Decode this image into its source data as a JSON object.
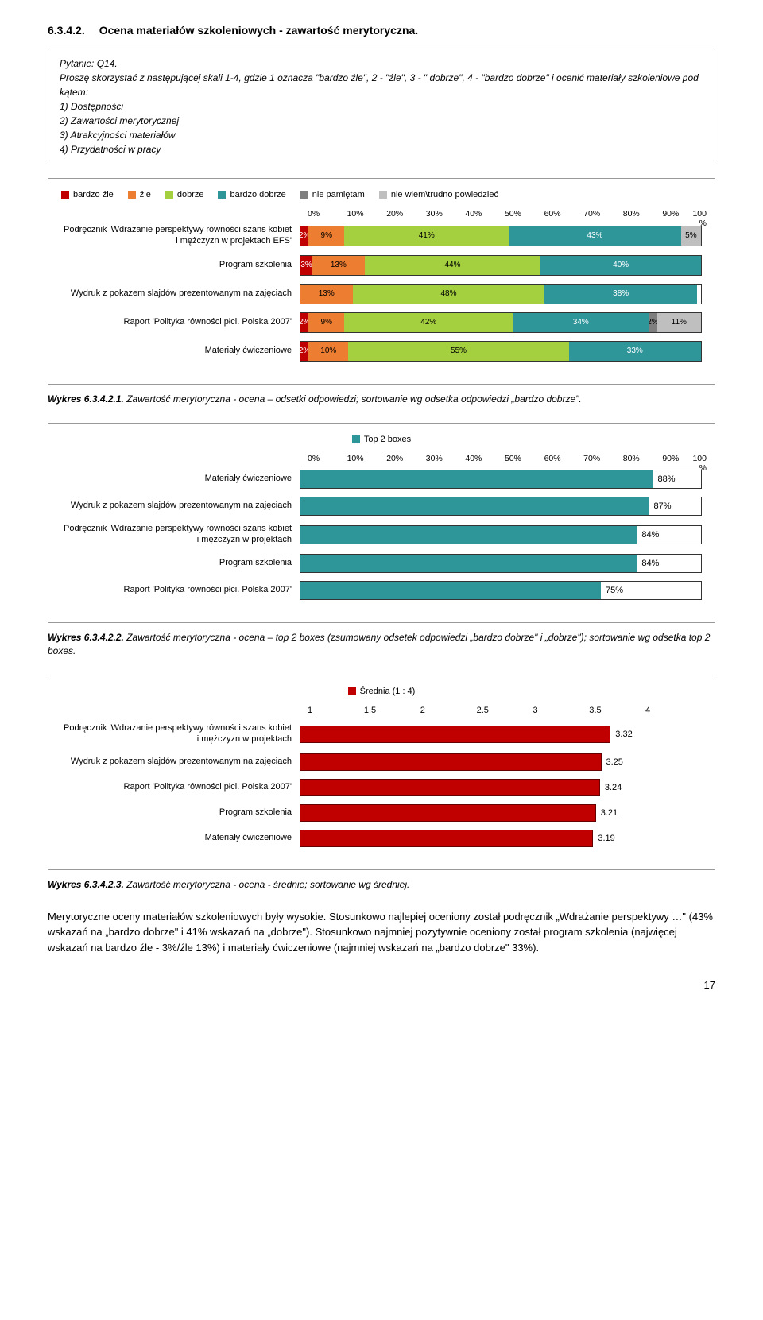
{
  "heading": {
    "num": "6.3.4.2.",
    "title": "Ocena materiałów szkoleniowych - zawartość merytoryczna."
  },
  "question": {
    "title": "Pytanie: Q14.",
    "lead": "Proszę skorzystać z następującej skali 1-4, gdzie 1 oznacza \"bardzo źle\", 2 - \"źle\", 3 - \" dobrze\", 4 - \"bardzo dobrze\" i ocenić materiały szkoleniowe pod kątem:",
    "items": [
      "1) Dostępności",
      "2) Zawartości merytorycznej",
      "3) Atrakcyjności materiałów",
      "4) Przydatności w pracy"
    ]
  },
  "chart1": {
    "legend": [
      {
        "label": "bardzo źle",
        "color": "#c00000"
      },
      {
        "label": "źle",
        "color": "#ed7d31"
      },
      {
        "label": "dobrze",
        "color": "#a4cf3f"
      },
      {
        "label": "bardzo dobrze",
        "color": "#2e9599"
      },
      {
        "label": "nie pamiętam",
        "color": "#7f7f7f"
      },
      {
        "label": "nie wiem\\trudno powiedzieć",
        "color": "#bfbfbf"
      }
    ],
    "xticks": [
      "0%",
      "10%",
      "20%",
      "30%",
      "40%",
      "50%",
      "60%",
      "70%",
      "80%",
      "90%",
      "100%"
    ],
    "rows": [
      {
        "label": "Podręcznik 'Wdrażanie perspektywy równości szans kobiet i mężczyzn w projektach EFS'",
        "segs": [
          {
            "v": 2,
            "c": "#c00000",
            "t": "2%"
          },
          {
            "v": 9,
            "c": "#ed7d31",
            "t": "9%"
          },
          {
            "v": 41,
            "c": "#a4cf3f",
            "t": "41%"
          },
          {
            "v": 43,
            "c": "#2e9599",
            "t": "43%"
          },
          {
            "v": 5,
            "c": "#bfbfbf",
            "t": "5%"
          }
        ]
      },
      {
        "label": "Program szkolenia",
        "segs": [
          {
            "v": 3,
            "c": "#c00000",
            "t": "3%"
          },
          {
            "v": 13,
            "c": "#ed7d31",
            "t": "13%"
          },
          {
            "v": 44,
            "c": "#a4cf3f",
            "t": "44%"
          },
          {
            "v": 40,
            "c": "#2e9599",
            "t": "40%"
          }
        ]
      },
      {
        "label": "Wydruk z pokazem slajdów prezentowanym na zajęciach",
        "segs": [
          {
            "v": 13,
            "c": "#ed7d31",
            "t": "13%"
          },
          {
            "v": 48,
            "c": "#a4cf3f",
            "t": "48%"
          },
          {
            "v": 38,
            "c": "#2e9599",
            "t": "38%"
          }
        ]
      },
      {
        "label": "Raport 'Polityka równości płci. Polska 2007'",
        "segs": [
          {
            "v": 2,
            "c": "#c00000",
            "t": "2%"
          },
          {
            "v": 9,
            "c": "#ed7d31",
            "t": "9%"
          },
          {
            "v": 42,
            "c": "#a4cf3f",
            "t": "42%"
          },
          {
            "v": 34,
            "c": "#2e9599",
            "t": "34%"
          },
          {
            "v": 2,
            "c": "#7f7f7f",
            "t": "2%"
          },
          {
            "v": 11,
            "c": "#bfbfbf",
            "t": "11%"
          }
        ]
      },
      {
        "label": "Materiały ćwiczeniowe",
        "segs": [
          {
            "v": 2,
            "c": "#c00000",
            "t": "2%"
          },
          {
            "v": 10,
            "c": "#ed7d31",
            "t": "10%"
          },
          {
            "v": 55,
            "c": "#a4cf3f",
            "t": "55%"
          },
          {
            "v": 33,
            "c": "#2e9599",
            "t": "33%"
          }
        ]
      }
    ]
  },
  "caption1": {
    "bold": "Wykres 6.3.4.2.1.",
    "text": " Zawartość merytoryczna - ocena – odsetki odpowiedzi; sortowanie wg odsetka odpowiedzi „bardzo dobrze\"."
  },
  "chart2": {
    "legend": [
      {
        "label": "Top 2 boxes",
        "color": "#2e9599"
      }
    ],
    "xticks": [
      "0%",
      "10%",
      "20%",
      "30%",
      "40%",
      "50%",
      "60%",
      "70%",
      "80%",
      "90%",
      "100%"
    ],
    "rows": [
      {
        "label": "Materiały ćwiczeniowe",
        "v": 88,
        "t": "88%"
      },
      {
        "label": "Wydruk z pokazem slajdów prezentowanym na zajęciach",
        "v": 87,
        "t": "87%"
      },
      {
        "label": "Podręcznik 'Wdrażanie perspektywy równości szans kobiet i mężczyzn w projektach",
        "v": 84,
        "t": "84%"
      },
      {
        "label": "Program szkolenia",
        "v": 84,
        "t": "84%"
      },
      {
        "label": "Raport 'Polityka równości płci. Polska 2007'",
        "v": 75,
        "t": "75%"
      }
    ],
    "bar_color": "#2e9599"
  },
  "caption2": {
    "bold": "Wykres 6.3.4.2.2.",
    "text": " Zawartość merytoryczna - ocena – top 2 boxes (zsumowany odsetek odpowiedzi „bardzo dobrze\" i „dobrze\"); sortowanie wg odsetka top 2 boxes."
  },
  "chart3": {
    "legend": [
      {
        "label": "Średnia (1 : 4)",
        "color": "#c00000"
      }
    ],
    "xticks": [
      "1",
      "1.5",
      "2",
      "2.5",
      "3",
      "3.5",
      "4"
    ],
    "min": 1,
    "max": 4,
    "rows": [
      {
        "label": "Podręcznik 'Wdrażanie perspektywy równości szans kobiet i mężczyzn w projektach",
        "v": 3.32,
        "t": "3.32"
      },
      {
        "label": "Wydruk z pokazem slajdów prezentowanym na zajęciach",
        "v": 3.25,
        "t": "3.25"
      },
      {
        "label": "Raport 'Polityka równości płci. Polska 2007'",
        "v": 3.24,
        "t": "3.24"
      },
      {
        "label": "Program szkolenia",
        "v": 3.21,
        "t": "3.21"
      },
      {
        "label": "Materiały ćwiczeniowe",
        "v": 3.19,
        "t": "3.19"
      }
    ],
    "bar_color": "#c00000"
  },
  "caption3": {
    "bold": "Wykres 6.3.4.2.3.",
    "text": " Zawartość merytoryczna - ocena - średnie; sortowanie wg średniej."
  },
  "body": "Merytoryczne oceny materiałów szkoleniowych były wysokie. Stosunkowo najlepiej oceniony został podręcznik „Wdrażanie perspektywy …\" (43% wskazań na „bardzo dobrze\" i 41% wskazań na „dobrze\"). Stosunkowo najmniej pozytywnie oceniony został program szkolenia (najwięcej wskazań na bardzo źle - 3%/źle 13%) i materiały ćwiczeniowe (najmniej wskazań na „bardzo dobrze\" 33%).",
  "page": "17"
}
